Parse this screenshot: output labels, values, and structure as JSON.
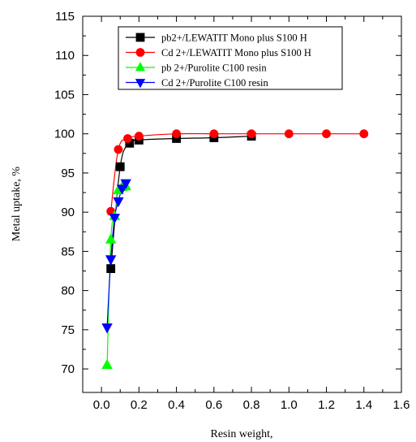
{
  "chart_data": {
    "type": "line",
    "xlabel": "Resin weight,",
    "ylabel": "Metal uptake, %",
    "xlim": [
      -0.1,
      1.6
    ],
    "ylim": [
      67,
      115
    ],
    "x_ticks": [
      0.0,
      0.2,
      0.4,
      0.6,
      0.8,
      1.0,
      1.2,
      1.4,
      1.6
    ],
    "x_tick_labels": [
      "0.0",
      "0.2",
      "0.4",
      "0.6",
      "0.8",
      "1.0",
      "1.2",
      "1.4",
      "1.6"
    ],
    "y_ticks": [
      70,
      75,
      80,
      85,
      90,
      95,
      100,
      105,
      110,
      115
    ],
    "y_tick_labels": [
      "70",
      "75",
      "80",
      "85",
      "90",
      "95",
      "100",
      "105",
      "110",
      "115"
    ],
    "grid": false,
    "legend_position": "top-center",
    "series": [
      {
        "name": "pb2+/LEWATIT Mono plus S100 H",
        "marker": "square",
        "color": "#000000",
        "x": [
          0.05,
          0.1,
          0.15,
          0.2,
          0.4,
          0.6,
          0.8
        ],
        "y": [
          82.8,
          95.8,
          98.8,
          99.2,
          99.4,
          99.5,
          99.7
        ]
      },
      {
        "name": "Cd 2+/LEWATIT Mono plus S100 H",
        "marker": "circle",
        "color": "#ff0000",
        "x": [
          0.05,
          0.09,
          0.14,
          0.2,
          0.4,
          0.6,
          0.8,
          1.0,
          1.2,
          1.4
        ],
        "y": [
          90.1,
          98.0,
          99.4,
          99.7,
          100.0,
          100.0,
          100.0,
          100.0,
          100.0,
          100.0
        ]
      },
      {
        "name": "pb 2+/Purolite C100 resin",
        "marker": "triangle-up",
        "color": "#00ff00",
        "x": [
          0.03,
          0.05,
          0.07,
          0.09,
          0.11,
          0.13
        ],
        "y": [
          70.5,
          86.5,
          89.5,
          92.8,
          93.2,
          93.3
        ]
      },
      {
        "name": "Cd 2+/Purolite C100 resin",
        "marker": "triangle-down",
        "color": "#0000ff",
        "x": [
          0.03,
          0.05,
          0.07,
          0.09,
          0.11,
          0.13
        ],
        "y": [
          75.3,
          84.0,
          89.3,
          91.4,
          93.0,
          93.7
        ]
      }
    ]
  }
}
